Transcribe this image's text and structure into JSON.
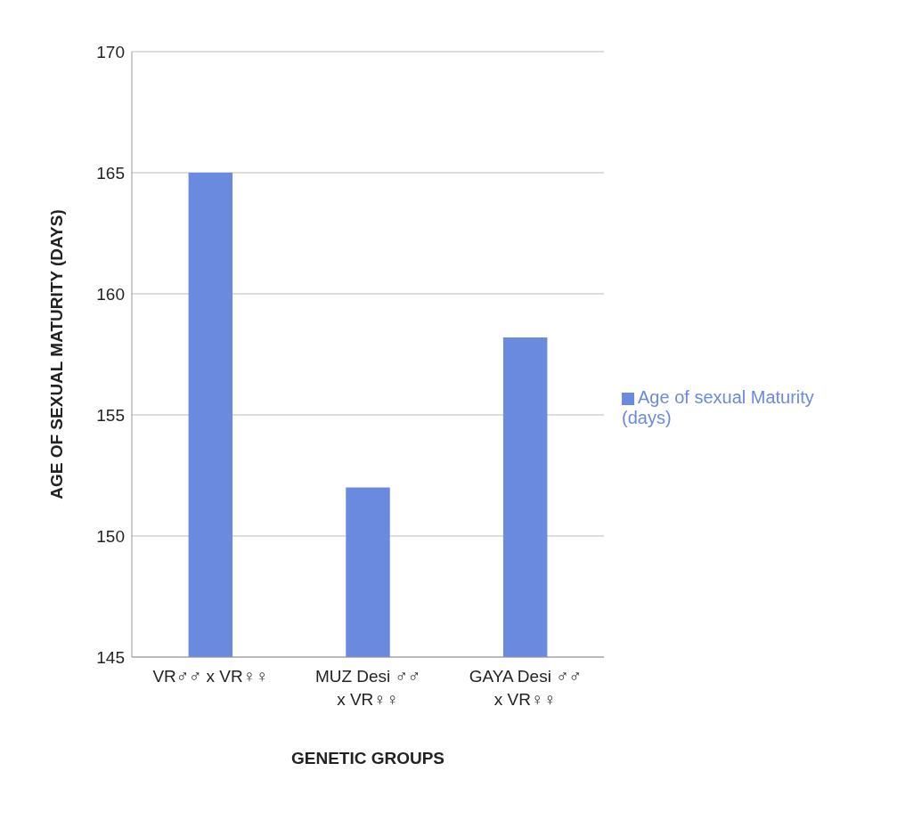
{
  "chart_data": {
    "type": "bar",
    "xlabel": "GENETIC GROUPS",
    "ylabel": "AGE OF SEXUAL MATURITY (DAYS)",
    "categories": [
      "VR♂♂ x VR♀♀",
      "MUZ Desi ♂♂ x VR♀♀",
      "GAYA Desi ♂♂ x VR♀♀"
    ],
    "series": [
      {
        "name": "Age of sexual Maturity (days)",
        "color": "#6a8ae0",
        "values": [
          165,
          152,
          158.2
        ]
      }
    ],
    "ylim": [
      145,
      170
    ],
    "yticks": [
      145,
      150,
      155,
      160,
      165,
      170
    ],
    "grid": "y",
    "legend": "right"
  }
}
